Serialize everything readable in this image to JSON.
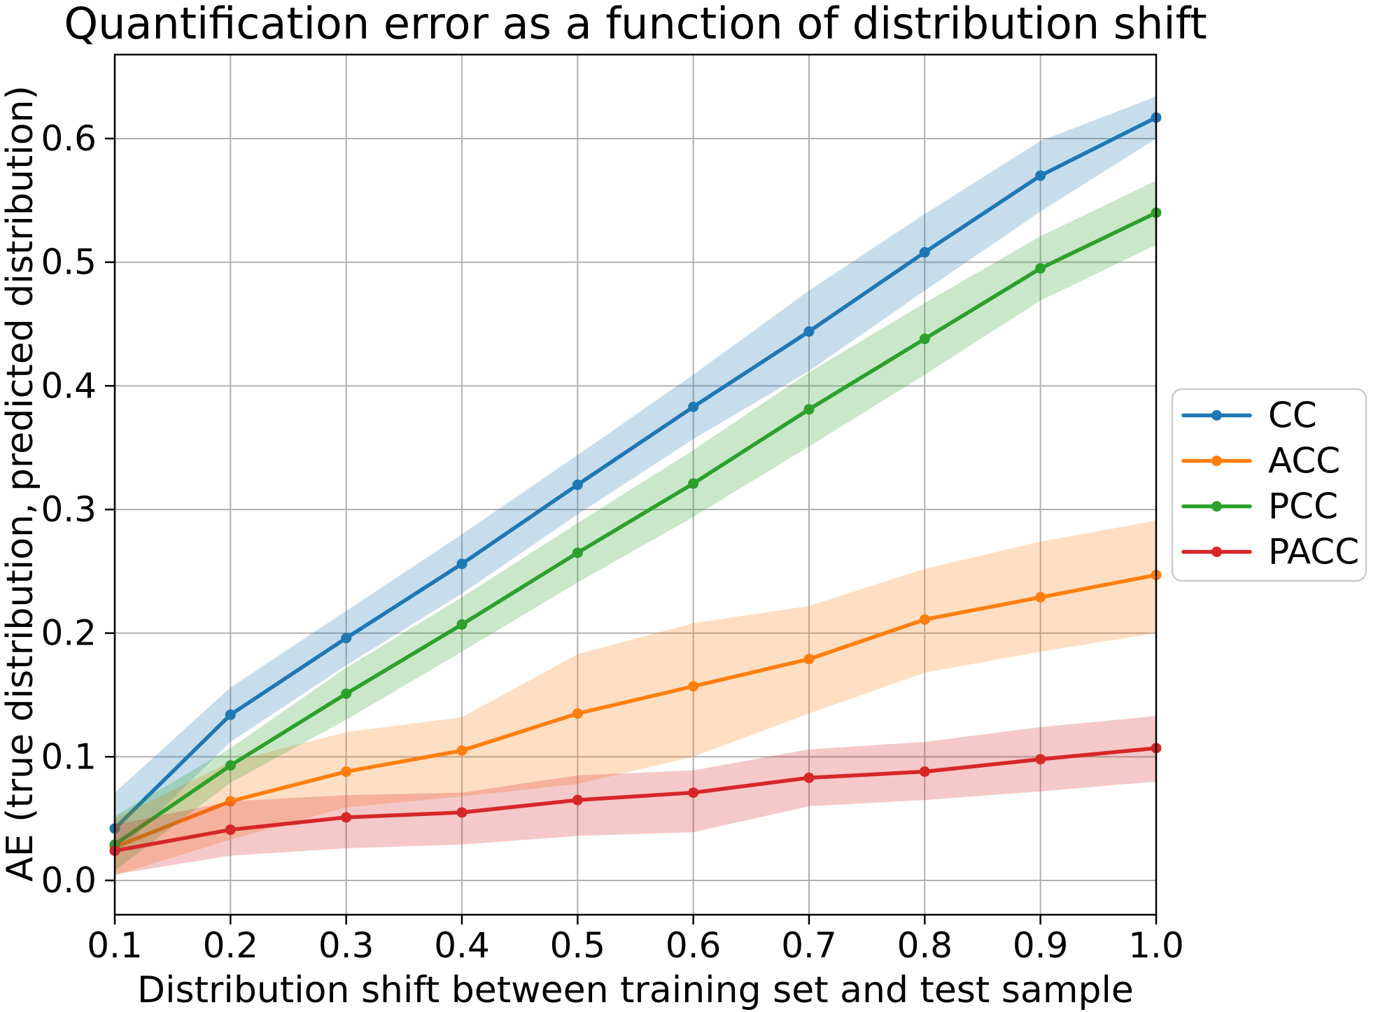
{
  "chart_data": {
    "type": "line",
    "title": "Quantification error as a function of distribution shift",
    "xlabel": "Distribution shift between training set and test sample",
    "ylabel": "AE (true distribution, predicted distribution)",
    "x": [
      0.1,
      0.2,
      0.3,
      0.4,
      0.5,
      0.6,
      0.7,
      0.8,
      0.9,
      1.0
    ],
    "x_tick_labels": [
      "0.1",
      "0.2",
      "0.3",
      "0.4",
      "0.5",
      "0.6",
      "0.7",
      "0.8",
      "0.9",
      "1.0"
    ],
    "y_tick_labels": [
      "0.0",
      "0.1",
      "0.2",
      "0.3",
      "0.4",
      "0.5",
      "0.6"
    ],
    "xlim": [
      0.1,
      1.0
    ],
    "ylim": [
      -0.028,
      0.668
    ],
    "grid": true,
    "grid_color": "#b0b0b0",
    "background": "#ffffff",
    "band_opacity": 0.25,
    "legend": {
      "location": "outside-right-center"
    },
    "series": [
      {
        "name": "CC",
        "color": "#1f77b4",
        "values": [
          0.042,
          0.134,
          0.196,
          0.256,
          0.32,
          0.383,
          0.444,
          0.508,
          0.57,
          0.617
        ],
        "band_low": [
          0.02,
          0.112,
          0.174,
          0.232,
          0.296,
          0.357,
          0.412,
          0.477,
          0.541,
          0.6
        ],
        "band_high": [
          0.071,
          0.156,
          0.218,
          0.28,
          0.344,
          0.409,
          0.477,
          0.539,
          0.598,
          0.634
        ]
      },
      {
        "name": "ACC",
        "color": "#ff7f0e",
        "values": [
          0.027,
          0.064,
          0.088,
          0.105,
          0.135,
          0.157,
          0.179,
          0.211,
          0.229,
          0.247
        ],
        "band_low": [
          0.004,
          0.033,
          0.059,
          0.068,
          0.078,
          0.1,
          0.135,
          0.168,
          0.185,
          0.2
        ],
        "band_high": [
          0.05,
          0.096,
          0.12,
          0.132,
          0.183,
          0.208,
          0.222,
          0.252,
          0.274,
          0.291
        ]
      },
      {
        "name": "PCC",
        "color": "#2ca02c",
        "values": [
          0.029,
          0.093,
          0.151,
          0.207,
          0.265,
          0.321,
          0.381,
          0.438,
          0.495,
          0.54
        ],
        "band_low": [
          0.008,
          0.079,
          0.13,
          0.185,
          0.241,
          0.294,
          0.351,
          0.409,
          0.469,
          0.514
        ],
        "band_high": [
          0.052,
          0.107,
          0.172,
          0.229,
          0.289,
          0.348,
          0.411,
          0.467,
          0.521,
          0.566
        ]
      },
      {
        "name": "PACC",
        "color": "#d62728",
        "values": [
          0.024,
          0.041,
          0.051,
          0.055,
          0.065,
          0.071,
          0.083,
          0.088,
          0.098,
          0.107
        ],
        "band_low": [
          0.005,
          0.02,
          0.026,
          0.029,
          0.036,
          0.039,
          0.06,
          0.065,
          0.072,
          0.08
        ],
        "band_high": [
          0.045,
          0.064,
          0.069,
          0.071,
          0.085,
          0.089,
          0.106,
          0.112,
          0.124,
          0.133
        ]
      }
    ]
  }
}
